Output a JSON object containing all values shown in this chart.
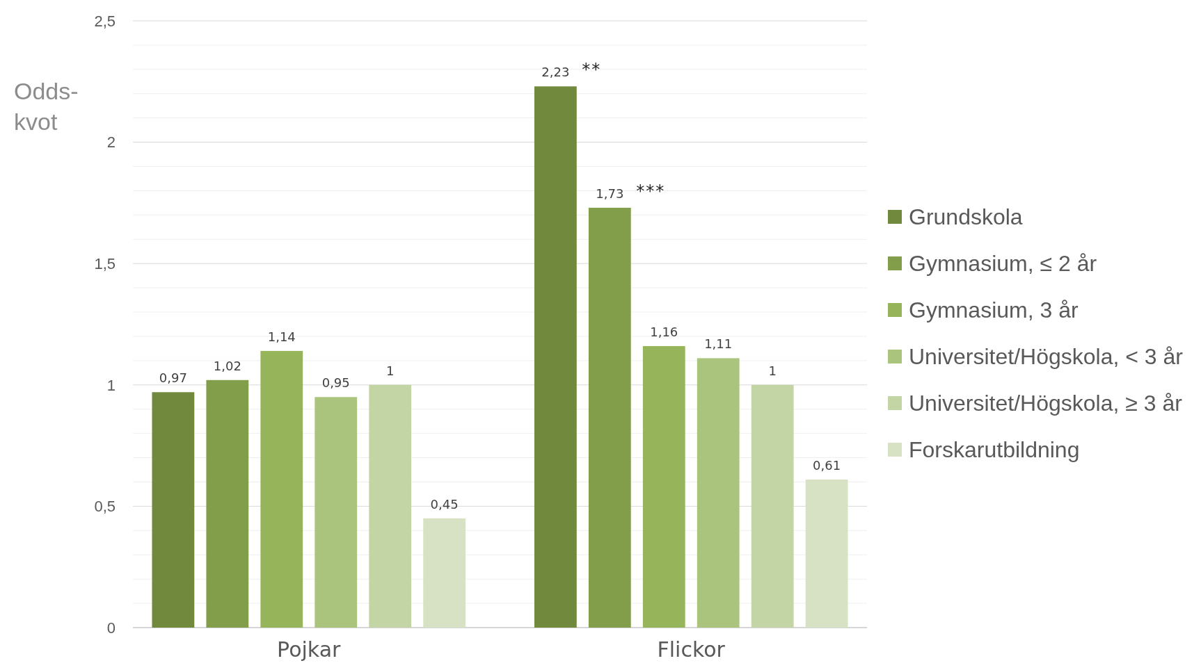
{
  "chart_data": {
    "type": "bar",
    "ylabel": "Odds-kvot",
    "categories": [
      "Pojkar",
      "Flickor"
    ],
    "series": [
      {
        "name": "Grundskola",
        "color": "#70893d",
        "values": [
          0.97,
          2.23
        ],
        "value_labels": [
          "0,97",
          "2,23"
        ]
      },
      {
        "name": "Gymnasium, ≤ 2 år",
        "color": "#829e4b",
        "values": [
          1.02,
          1.73
        ],
        "value_labels": [
          "1,02",
          "1,73"
        ]
      },
      {
        "name": "Gymnasium, 3 år",
        "color": "#96b45a",
        "values": [
          1.14,
          1.16
        ],
        "value_labels": [
          "1,14",
          "1,16"
        ]
      },
      {
        "name": "Universitet/Högskola, < 3 år",
        "color": "#aac47e",
        "values": [
          0.95,
          1.11
        ],
        "value_labels": [
          "0,95",
          "1,11"
        ]
      },
      {
        "name": "Universitet/Högskola, ≥ 3 år",
        "color": "#c3d4a5",
        "values": [
          1,
          1
        ],
        "value_labels": [
          "1",
          "1"
        ]
      },
      {
        "name": "Forskarutbildning",
        "color": "#d7e2c4",
        "values": [
          0.45,
          0.61
        ],
        "value_labels": [
          "0,45",
          "0,61"
        ]
      }
    ],
    "ylim": [
      0,
      2.5
    ],
    "yticks": [
      {
        "value": 0,
        "label": "0"
      },
      {
        "value": 0.1,
        "label": null
      },
      {
        "value": 0.2,
        "label": null
      },
      {
        "value": 0.3,
        "label": null
      },
      {
        "value": 0.4,
        "label": null
      },
      {
        "value": 0.5,
        "label": "0,5"
      },
      {
        "value": 0.6,
        "label": null
      },
      {
        "value": 0.7,
        "label": null
      },
      {
        "value": 0.8,
        "label": null
      },
      {
        "value": 0.9,
        "label": null
      },
      {
        "value": 1,
        "label": "1"
      },
      {
        "value": 1.1,
        "label": null
      },
      {
        "value": 1.2,
        "label": null
      },
      {
        "value": 1.3,
        "label": null
      },
      {
        "value": 1.4,
        "label": null
      },
      {
        "value": 1.5,
        "label": "1,5"
      },
      {
        "value": 1.6,
        "label": null
      },
      {
        "value": 1.7,
        "label": null
      },
      {
        "value": 1.8,
        "label": null
      },
      {
        "value": 1.9,
        "label": null
      },
      {
        "value": 2,
        "label": "2"
      },
      {
        "value": 2.1,
        "label": null
      },
      {
        "value": 2.2,
        "label": null
      },
      {
        "value": 2.3,
        "label": null
      },
      {
        "value": 2.4,
        "label": null
      },
      {
        "value": 2.5,
        "label": "2,5"
      }
    ],
    "grid": "y",
    "legend": "right",
    "annotations": [
      "**",
      "***"
    ]
  }
}
